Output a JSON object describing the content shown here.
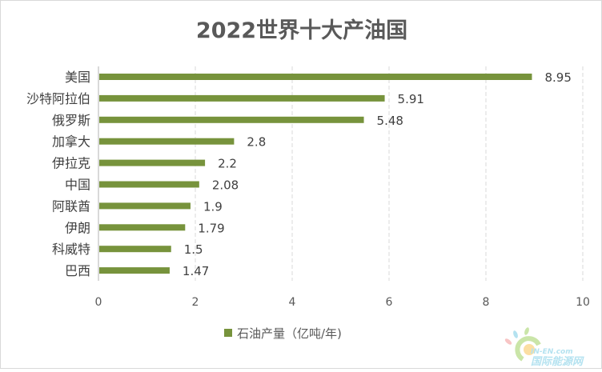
{
  "chart_data": {
    "type": "bar",
    "orientation": "horizontal",
    "title": "2022世界十大产油国",
    "categories": [
      "美国",
      "沙特阿拉伯",
      "俄罗斯",
      "加拿大",
      "伊拉克",
      "中国",
      "阿联酋",
      "伊朗",
      "科威特",
      "巴西"
    ],
    "series": [
      {
        "name": "石油产量（亿吨/年)",
        "values": [
          8.95,
          5.91,
          5.48,
          2.8,
          2.2,
          2.08,
          1.9,
          1.79,
          1.5,
          1.47
        ],
        "color": "#77933C"
      }
    ],
    "value_labels": [
      "8.95",
      "5.91",
      "5.48",
      "2.8",
      "2.2",
      "2.08",
      "1.9",
      "1.79",
      "1.5",
      "1.47"
    ],
    "xlim": [
      0,
      10
    ],
    "xticks": [
      0,
      2,
      4,
      6,
      8,
      10
    ],
    "grid": "vertical dashed",
    "legend": "bottom-center",
    "xlabel": "",
    "ylabel": ""
  },
  "watermark": {
    "text_en": "IN-EN.com",
    "text_cn": "国际能源网"
  }
}
